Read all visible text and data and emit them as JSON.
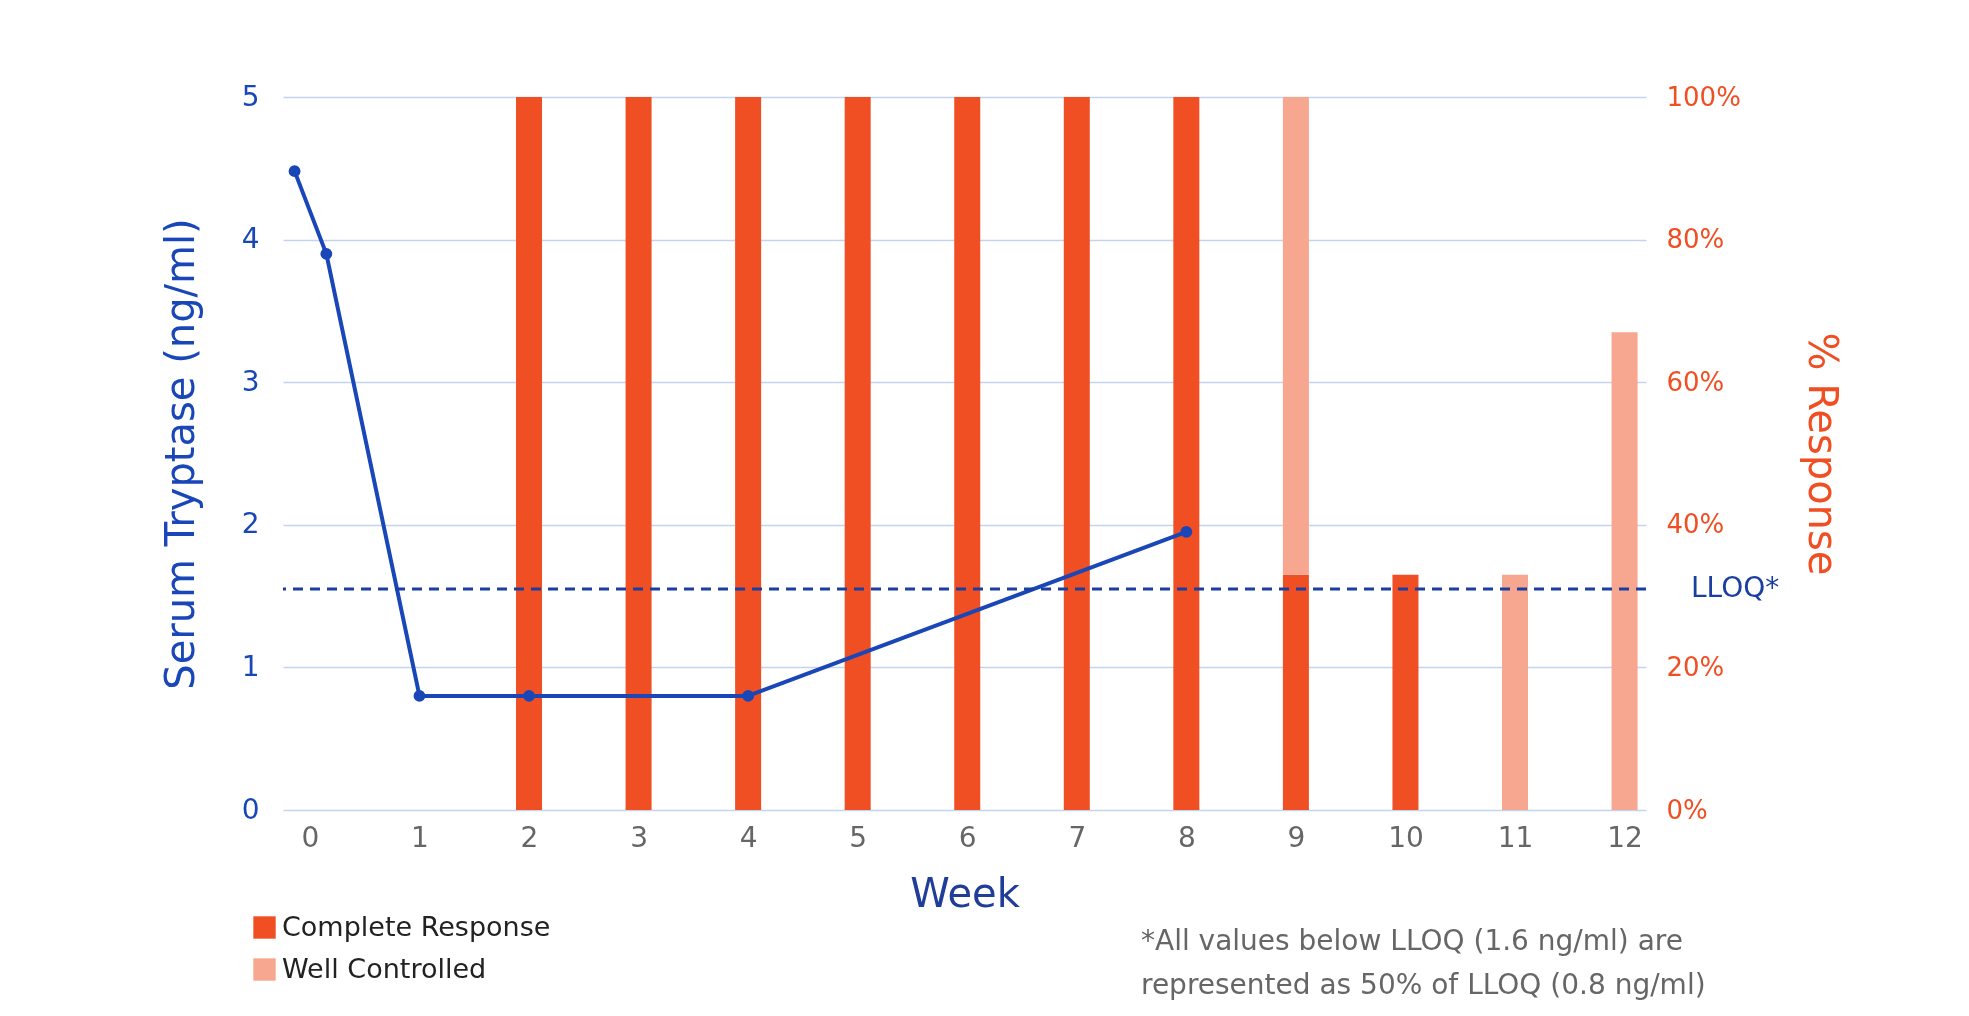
{
  "chart_data": {
    "type": "bar",
    "xlabel": "Week",
    "ylabel": "Serum Tryptase (ng/ml)",
    "y2label": "% Response",
    "x": [
      2,
      3,
      4,
      5,
      6,
      7,
      8,
      9,
      10,
      11,
      12
    ],
    "xlim": [
      -0.2,
      12.15
    ],
    "xticks": [
      0,
      1,
      2,
      3,
      4,
      5,
      6,
      7,
      8,
      9,
      10,
      11,
      12
    ],
    "ylim": [
      0,
      5
    ],
    "yticks": [
      0,
      1,
      2,
      3,
      4,
      5
    ],
    "y2lim": [
      0,
      100
    ],
    "y2ticks": [
      {
        "value": 0,
        "label": "0%"
      },
      {
        "value": 20,
        "label": "20%"
      },
      {
        "value": 40,
        "label": "40%"
      },
      {
        "value": 60,
        "label": "60%"
      },
      {
        "value": 80,
        "label": "80%"
      },
      {
        "value": 100,
        "label": "100%"
      }
    ],
    "stacked": true,
    "grid": "y",
    "legend": "bottom left",
    "marker": "circle",
    "series": [
      {
        "name": "Complete Response",
        "color": "#f04e23",
        "axis": "y2",
        "values": [
          100,
          100,
          100,
          100,
          100,
          100,
          100,
          33,
          33,
          null,
          null
        ]
      },
      {
        "name": "Well Controlled",
        "color": "#f7a68f",
        "axis": "y2",
        "values": [
          null,
          null,
          null,
          null,
          null,
          null,
          null,
          67,
          null,
          33,
          67
        ]
      },
      {
        "type": "line",
        "color": "#1a47b8",
        "x": [
          -0.14,
          0.15,
          1,
          2,
          4,
          8
        ],
        "values": [
          4.48,
          3.9,
          0.8,
          0.8,
          0.8,
          1.95
        ]
      }
    ],
    "ref_lines": [
      {
        "axis": "y",
        "value": 1.55,
        "label": "LLOQ*",
        "color": "#1a3fa0",
        "line_style": "dashed"
      }
    ],
    "annotations": [
      "*All values below LLOQ (1.6 ng/ml) are",
      "represented as 50% of LLOQ (0.8 ng/ml)"
    ]
  }
}
